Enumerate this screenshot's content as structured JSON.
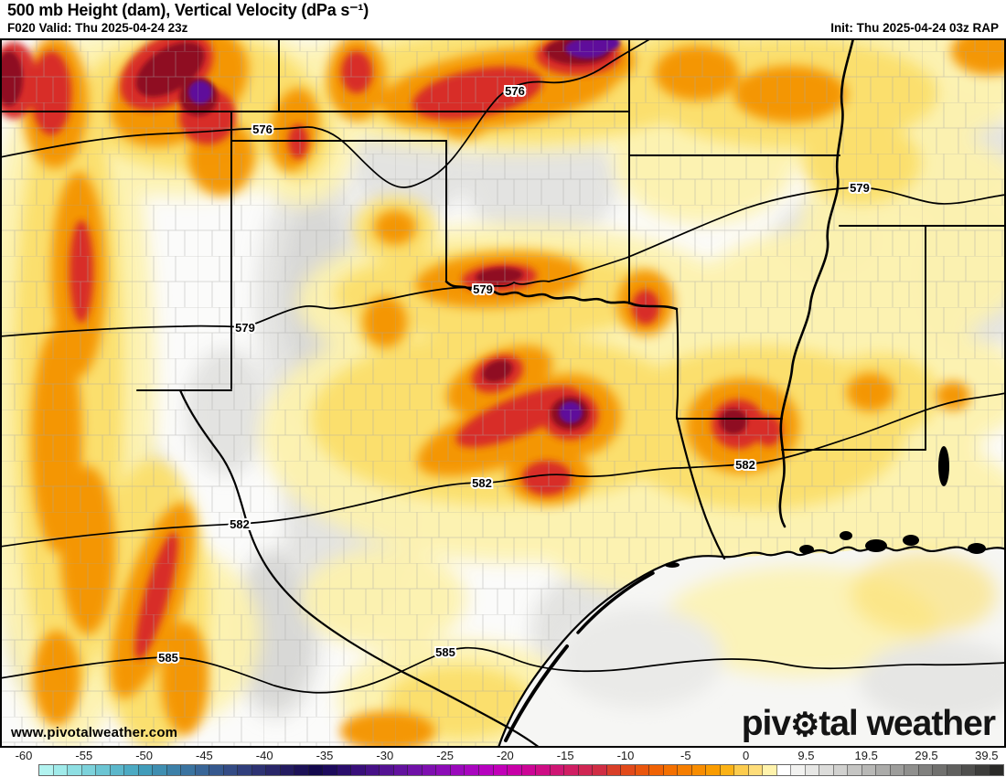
{
  "header": {
    "title": "500 mb Height (dam), Vertical Velocity (dPa s⁻¹)",
    "valid": "F020 Valid: Thu 2025-04-24 23z",
    "init": "Init: Thu 2025-04-24 03z RAP"
  },
  "map": {
    "watermark": "www.pivotalweather.com",
    "logo": {
      "left": "piv",
      "gear": "⚙",
      "right": "tal weather"
    },
    "contour_unit": "dam",
    "contour_labels": [
      {
        "v": "576"
      },
      {
        "v": "576"
      },
      {
        "v": "579"
      },
      {
        "v": "579"
      },
      {
        "v": "579"
      },
      {
        "v": "582"
      },
      {
        "v": "582"
      },
      {
        "v": "582"
      },
      {
        "v": "585"
      },
      {
        "v": "585"
      }
    ]
  },
  "colorbar": {
    "ticks": [
      "-60",
      "-55",
      "-50",
      "-45",
      "-40",
      "-35",
      "-30",
      "-25",
      "-20",
      "-15",
      "-10",
      "-5",
      "0",
      "9.5",
      "19.5",
      "29.5",
      "39.5"
    ],
    "cells": [
      "#b2f3f0",
      "#a0ebea",
      "#8edfe3",
      "#7cd2db",
      "#6bc5d3",
      "#5bb7cb",
      "#4caac3",
      "#419cba",
      "#3f8eb1",
      "#3c80a8",
      "#3a73a0",
      "#386597",
      "#35588e",
      "#334b85",
      "#303e7c",
      "#2d3273",
      "#292669",
      "#231b60",
      "#1c1157",
      "#13084d",
      "#1c0a5c",
      "#2a0d6c",
      "#380f7a",
      "#461187",
      "#541293",
      "#62129e",
      "#7011a8",
      "#7e0fb0",
      "#8c0cb7",
      "#9a09bc",
      "#a806bf",
      "#b602bf",
      "#c100b8",
      "#c800a8",
      "#cc0596",
      "#ce0d85",
      "#cf1674",
      "#d01e63",
      "#d02653",
      "#d02d44",
      "#d93f28",
      "#e24a1a",
      "#ea560d",
      "#f06204",
      "#f47000",
      "#f67e00",
      "#f88d00",
      "#fa9c00",
      "#fbb216",
      "#fccc4e",
      "#fedd7a",
      "#fff3ac",
      "#ffffff",
      "#f2f2f0",
      "#e7e7e5",
      "#dcdcda",
      "#d1d1cf",
      "#c5c5c3",
      "#b8b8b6",
      "#ababa9",
      "#9d9d9b",
      "#8f8f8d",
      "#80807e",
      "#70706e",
      "#60605e",
      "#4f4f4d",
      "#3d3d3b",
      "#2a2a28"
    ]
  }
}
